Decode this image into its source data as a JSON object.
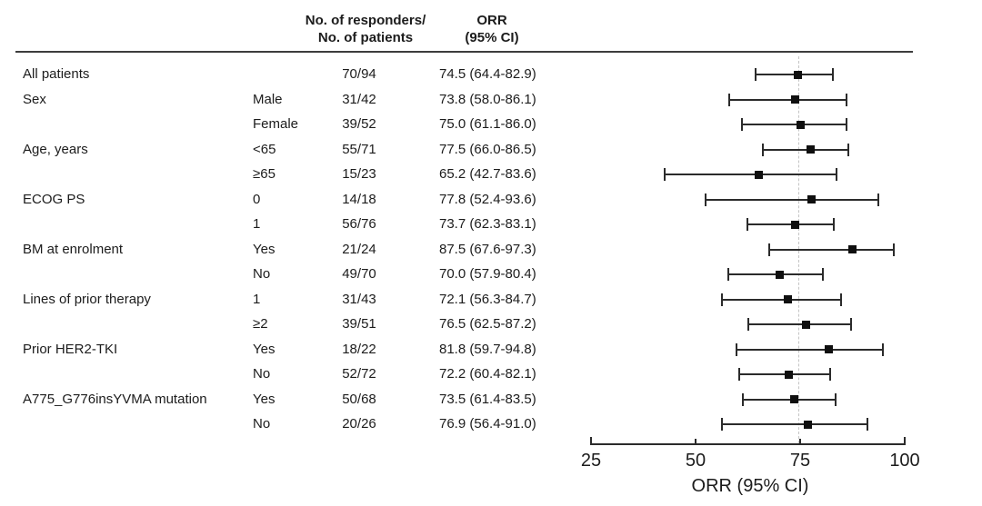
{
  "figure": {
    "headers": {
      "responders": [
        "No. of responders/",
        "No. of patients"
      ],
      "orr": [
        "ORR",
        "(95% CI)"
      ]
    }
  },
  "chart_data": {
    "type": "forest",
    "title": "",
    "xlabel": "ORR (95% CI)",
    "xlim": [
      25,
      100
    ],
    "xticks": [
      25,
      50,
      75,
      100
    ],
    "reference_line": 74.5,
    "grid": false,
    "legend_position": "none",
    "rows": [
      {
        "group": "All patients",
        "subgroup": "",
        "n": "70/94",
        "orr": 74.5,
        "ci_low": 64.4,
        "ci_high": 82.9,
        "orr_text": "74.5 (64.4-82.9)"
      },
      {
        "group": "Sex",
        "subgroup": "Male",
        "n": "31/42",
        "orr": 73.8,
        "ci_low": 58.0,
        "ci_high": 86.1,
        "orr_text": "73.8 (58.0-86.1)"
      },
      {
        "group": "",
        "subgroup": "Female",
        "n": "39/52",
        "orr": 75.0,
        "ci_low": 61.1,
        "ci_high": 86.0,
        "orr_text": "75.0 (61.1-86.0)"
      },
      {
        "group": "Age, years",
        "subgroup": "<65",
        "n": "55/71",
        "orr": 77.5,
        "ci_low": 66.0,
        "ci_high": 86.5,
        "orr_text": "77.5 (66.0-86.5)"
      },
      {
        "group": "",
        "subgroup": "≥65",
        "n": "15/23",
        "orr": 65.2,
        "ci_low": 42.7,
        "ci_high": 83.6,
        "orr_text": "65.2 (42.7-83.6)"
      },
      {
        "group": "ECOG PS",
        "subgroup": "0",
        "n": "14/18",
        "orr": 77.8,
        "ci_low": 52.4,
        "ci_high": 93.6,
        "orr_text": "77.8 (52.4-93.6)"
      },
      {
        "group": "",
        "subgroup": "1",
        "n": "56/76",
        "orr": 73.7,
        "ci_low": 62.3,
        "ci_high": 83.1,
        "orr_text": "73.7 (62.3-83.1)"
      },
      {
        "group": "BM at enrolment",
        "subgroup": "Yes",
        "n": "21/24",
        "orr": 87.5,
        "ci_low": 67.6,
        "ci_high": 97.3,
        "orr_text": "87.5 (67.6-97.3)"
      },
      {
        "group": "",
        "subgroup": "No",
        "n": "49/70",
        "orr": 70.0,
        "ci_low": 57.9,
        "ci_high": 80.4,
        "orr_text": "70.0 (57.9-80.4)"
      },
      {
        "group": "Lines of prior therapy",
        "subgroup": "1",
        "n": "31/43",
        "orr": 72.1,
        "ci_low": 56.3,
        "ci_high": 84.7,
        "orr_text": "72.1 (56.3-84.7)"
      },
      {
        "group": "",
        "subgroup": "≥2",
        "n": "39/51",
        "orr": 76.5,
        "ci_low": 62.5,
        "ci_high": 87.2,
        "orr_text": "76.5 (62.5-87.2)"
      },
      {
        "group": "Prior HER2-TKI",
        "subgroup": "Yes",
        "n": "18/22",
        "orr": 81.8,
        "ci_low": 59.7,
        "ci_high": 94.8,
        "orr_text": "81.8 (59.7-94.8)"
      },
      {
        "group": "",
        "subgroup": "No",
        "n": "52/72",
        "orr": 72.2,
        "ci_low": 60.4,
        "ci_high": 82.1,
        "orr_text": "72.2 (60.4-82.1)"
      },
      {
        "group": "A775_G776insYVMA mutation",
        "subgroup": "Yes",
        "n": "50/68",
        "orr": 73.5,
        "ci_low": 61.4,
        "ci_high": 83.5,
        "orr_text": "73.5 (61.4-83.5)"
      },
      {
        "group": "",
        "subgroup": "No",
        "n": "20/26",
        "orr": 76.9,
        "ci_low": 56.4,
        "ci_high": 91.0,
        "orr_text": "76.9 (56.4-91.0)"
      }
    ]
  }
}
